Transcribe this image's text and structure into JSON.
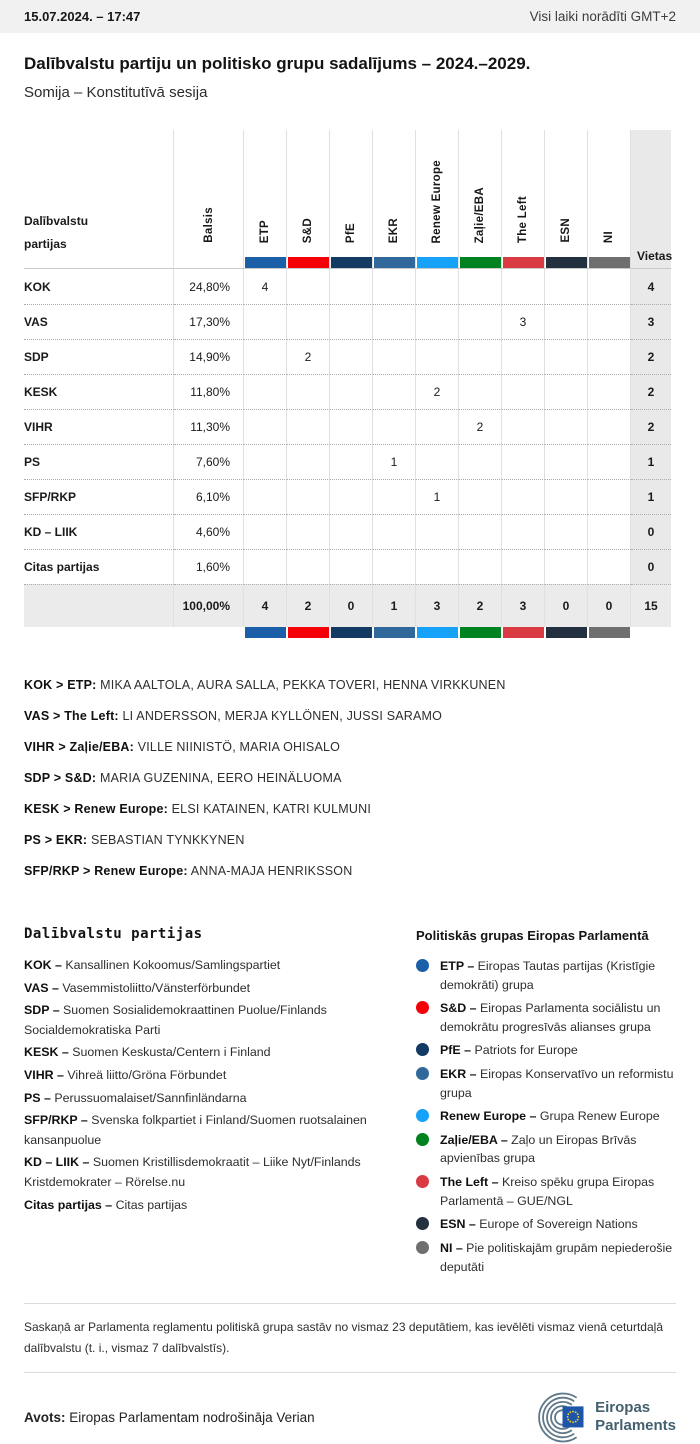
{
  "topbar": {
    "datetime": "15.07.2024. – 17:47",
    "timezone_note": "Visi laiki norādīti GMT+2"
  },
  "header": {
    "title": "Dalībvalstu partiju un politisko grupu sadalījums – 2024.–2029.",
    "subtitle": "Somija – Konstitutīvā sesija"
  },
  "table": {
    "corner_label": "Dalībvalstu partijas",
    "votes_label": "Balsis",
    "seats_label": "Vietas",
    "groups": [
      {
        "label": "ETP",
        "color": "#1b5fa8"
      },
      {
        "label": "S&D",
        "color": "#f60008"
      },
      {
        "label": "PfE",
        "color": "#123a63"
      },
      {
        "label": "EKR",
        "color": "#31689b"
      },
      {
        "label": "Renew Europe",
        "color": "#17a2fa"
      },
      {
        "label": "Zaļie/EBA",
        "color": "#008221"
      },
      {
        "label": "The Left",
        "color": "#da3a42"
      },
      {
        "label": "ESN",
        "color": "#22303f"
      },
      {
        "label": "NI",
        "color": "#6f6f6f"
      }
    ],
    "rows": [
      {
        "party": "KOK",
        "votes": "24,80%",
        "seats_by_group": [
          "4",
          "",
          "",
          "",
          "",
          "",
          "",
          "",
          ""
        ],
        "seats": "4"
      },
      {
        "party": "VAS",
        "votes": "17,30%",
        "seats_by_group": [
          "",
          "",
          "",
          "",
          "",
          "",
          "3",
          "",
          ""
        ],
        "seats": "3"
      },
      {
        "party": "SDP",
        "votes": "14,90%",
        "seats_by_group": [
          "",
          "2",
          "",
          "",
          "",
          "",
          "",
          "",
          ""
        ],
        "seats": "2"
      },
      {
        "party": "KESK",
        "votes": "11,80%",
        "seats_by_group": [
          "",
          "",
          "",
          "",
          "2",
          "",
          "",
          "",
          ""
        ],
        "seats": "2"
      },
      {
        "party": "VIHR",
        "votes": "11,30%",
        "seats_by_group": [
          "",
          "",
          "",
          "",
          "",
          "2",
          "",
          "",
          ""
        ],
        "seats": "2"
      },
      {
        "party": "PS",
        "votes": "7,60%",
        "seats_by_group": [
          "",
          "",
          "",
          "1",
          "",
          "",
          "",
          "",
          ""
        ],
        "seats": "1"
      },
      {
        "party": "SFP/RKP",
        "votes": "6,10%",
        "seats_by_group": [
          "",
          "",
          "",
          "",
          "1",
          "",
          "",
          "",
          ""
        ],
        "seats": "1"
      },
      {
        "party": "KD – LIIK",
        "votes": "4,60%",
        "seats_by_group": [
          "",
          "",
          "",
          "",
          "",
          "",
          "",
          "",
          ""
        ],
        "seats": "0"
      },
      {
        "party": "Citas partijas",
        "votes": "1,60%",
        "seats_by_group": [
          "",
          "",
          "",
          "",
          "",
          "",
          "",
          "",
          ""
        ],
        "seats": "0"
      }
    ],
    "total": {
      "votes": "100,00%",
      "seats_by_group": [
        "4",
        "2",
        "0",
        "1",
        "3",
        "2",
        "3",
        "0",
        "0"
      ],
      "seats": "15"
    }
  },
  "mep_lists": [
    {
      "label": "KOK > ETP:",
      "names": "MIKA AALTOLA, AURA SALLA, PEKKA TOVERI, HENNA VIRKKUNEN"
    },
    {
      "label": "VAS > The Left:",
      "names": "LI ANDERSSON, MERJA KYLLÖNEN, JUSSI SARAMO"
    },
    {
      "label": "VIHR > Zaļie/EBA:",
      "names": "VILLE NIINISTÖ, MARIA OHISALO"
    },
    {
      "label": "SDP > S&D:",
      "names": "MARIA GUZENINA, EERO HEINÄLUOMA"
    },
    {
      "label": "KESK > Renew Europe:",
      "names": "ELSI KATAINEN, KATRI KULMUNI"
    },
    {
      "label": "PS > EKR:",
      "names": "SEBASTIAN TYNKKYNEN"
    },
    {
      "label": "SFP/RKP > Renew Europe:",
      "names": "ANNA-MAJA HENRIKSSON"
    }
  ],
  "party_legend": {
    "heading": "Dalībvalstu partijas",
    "items": [
      {
        "abbr": "KOK –",
        "name": "Kansallinen Kokoomus/Samlingspartiet"
      },
      {
        "abbr": "VAS –",
        "name": "Vasemmistoliitto/Vänsterförbundet"
      },
      {
        "abbr": "SDP –",
        "name": "Suomen Sosialidemokraattinen Puolue/Finlands Socialdemokratiska Parti"
      },
      {
        "abbr": "KESK –",
        "name": "Suomen Keskusta/Centern i Finland"
      },
      {
        "abbr": "VIHR –",
        "name": "Vihreä liitto/Gröna Förbundet"
      },
      {
        "abbr": "PS –",
        "name": "Perussuomalaiset/Sannfinländarna"
      },
      {
        "abbr": "SFP/RKP –",
        "name": "Svenska folkpartiet i Finland/Suomen ruotsalainen kansanpuolue"
      },
      {
        "abbr": "KD – LIIK –",
        "name": "Suomen Kristillisdemokraatit – Liike Nyt/Finlands Kristdemokrater – Rörelse.nu"
      },
      {
        "abbr": "Citas partijas –",
        "name": "Citas partijas"
      }
    ]
  },
  "group_legend": {
    "heading": "Politiskās grupas Eiropas Parlamentā",
    "items": [
      {
        "abbr": "ETP –",
        "name": "Eiropas Tautas partijas (Kristīgie demokrāti) grupa",
        "color": "#1b5fa8"
      },
      {
        "abbr": "S&D –",
        "name": "Eiropas Parlamenta sociālistu un demokrātu progresīvās alianses grupa",
        "color": "#f60008"
      },
      {
        "abbr": "PfE –",
        "name": "Patriots for Europe",
        "color": "#123a63"
      },
      {
        "abbr": "EKR –",
        "name": "Eiropas Konservatīvo un reformistu grupa",
        "color": "#31689b"
      },
      {
        "abbr": "Renew Europe –",
        "name": "Grupa Renew Europe",
        "color": "#17a2fa"
      },
      {
        "abbr": "Zaļie/EBA –",
        "name": "Zaļo un Eiropas Brīvās apvienības grupa",
        "color": "#008221"
      },
      {
        "abbr": "The Left –",
        "name": "Kreiso spēku grupa Eiropas Parlamentā – GUE/NGL",
        "color": "#da3a42"
      },
      {
        "abbr": "ESN –",
        "name": "Europe of Sovereign Nations",
        "color": "#22303f"
      },
      {
        "abbr": "NI –",
        "name": "Pie politiskajām grupām nepiederošie deputāti",
        "color": "#6f6f6f"
      }
    ]
  },
  "footnote": "Saskaņā ar Parlamenta reglamentu politiskā grupa sastāv no vismaz 23 deputātiem, kas ievēlēti vismaz vienā ceturtdaļā dalībvalstu (t. i., vismaz 7 dalībvalstīs).",
  "source": {
    "label": "Avots:",
    "text": "Eiropas Parlamentam nodrošināja Verian"
  },
  "logo": {
    "line1": "Eiropas",
    "line2": "Parlaments"
  },
  "chart_data": {
    "type": "table",
    "title": "Dalībvalstu partiju un politisko grupu sadalījums – 2024.–2029.",
    "subtitle": "Somija – Konstitutīvā sesija",
    "columns": [
      "Dalībvalstu partijas",
      "Balsis",
      "ETP",
      "S&D",
      "PfE",
      "EKR",
      "Renew Europe",
      "Zaļie/EBA",
      "The Left",
      "ESN",
      "NI",
      "Vietas"
    ],
    "rows": [
      {
        "party": "KOK",
        "balsis_pct": 24.8,
        "seats": {
          "ETP": 4
        },
        "vietas": 4
      },
      {
        "party": "VAS",
        "balsis_pct": 17.3,
        "seats": {
          "The Left": 3
        },
        "vietas": 3
      },
      {
        "party": "SDP",
        "balsis_pct": 14.9,
        "seats": {
          "S&D": 2
        },
        "vietas": 2
      },
      {
        "party": "KESK",
        "balsis_pct": 11.8,
        "seats": {
          "Renew Europe": 2
        },
        "vietas": 2
      },
      {
        "party": "VIHR",
        "balsis_pct": 11.3,
        "seats": {
          "Zaļie/EBA": 2
        },
        "vietas": 2
      },
      {
        "party": "PS",
        "balsis_pct": 7.6,
        "seats": {
          "EKR": 1
        },
        "vietas": 1
      },
      {
        "party": "SFP/RKP",
        "balsis_pct": 6.1,
        "seats": {
          "Renew Europe": 1
        },
        "vietas": 1
      },
      {
        "party": "KD – LIIK",
        "balsis_pct": 4.6,
        "seats": {},
        "vietas": 0
      },
      {
        "party": "Citas partijas",
        "balsis_pct": 1.6,
        "seats": {},
        "vietas": 0
      }
    ],
    "total": {
      "balsis_pct": 100.0,
      "seats": {
        "ETP": 4,
        "S&D": 2,
        "PfE": 0,
        "EKR": 1,
        "Renew Europe": 3,
        "Zaļie/EBA": 2,
        "The Left": 3,
        "ESN": 0,
        "NI": 0
      },
      "vietas": 15
    }
  }
}
